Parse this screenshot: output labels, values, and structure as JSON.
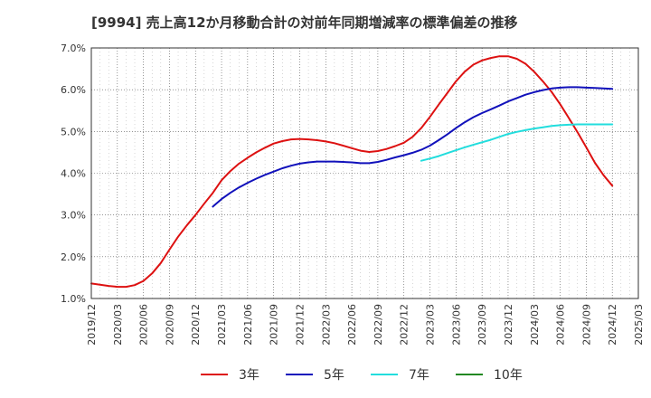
{
  "chart_data": {
    "type": "line",
    "title": "[9994]  売上高12か月移動合計の対前年同期増減率の標準偏差の推移",
    "x_ticks": [
      "2019/12",
      "2020/03",
      "2020/06",
      "2020/09",
      "2020/12",
      "2021/03",
      "2021/06",
      "2021/09",
      "2021/12",
      "2022/03",
      "2022/06",
      "2022/09",
      "2022/12",
      "2023/03",
      "2023/06",
      "2023/09",
      "2023/12",
      "2024/03",
      "2024/06",
      "2024/09",
      "2024/12",
      "2025/03"
    ],
    "y_ticks": [
      "1.0%",
      "2.0%",
      "3.0%",
      "4.0%",
      "5.0%",
      "6.0%",
      "7.0%"
    ],
    "ylim": [
      1.0,
      7.0
    ],
    "y_unit": "%",
    "grid": true,
    "legend_position": "bottom",
    "series": [
      {
        "name": "3年",
        "color": "#dd1111",
        "points": [
          [
            "2019/12",
            1.36
          ],
          [
            "2020/01",
            1.33
          ],
          [
            "2020/02",
            1.3
          ],
          [
            "2020/03",
            1.28
          ],
          [
            "2020/04",
            1.28
          ],
          [
            "2020/05",
            1.32
          ],
          [
            "2020/06",
            1.42
          ],
          [
            "2020/07",
            1.6
          ],
          [
            "2020/08",
            1.85
          ],
          [
            "2020/09",
            2.17
          ],
          [
            "2020/10",
            2.48
          ],
          [
            "2020/11",
            2.75
          ],
          [
            "2020/12",
            3.0
          ],
          [
            "2021/01",
            3.27
          ],
          [
            "2021/02",
            3.53
          ],
          [
            "2021/03",
            3.83
          ],
          [
            "2021/04",
            4.05
          ],
          [
            "2021/05",
            4.23
          ],
          [
            "2021/06",
            4.37
          ],
          [
            "2021/07",
            4.5
          ],
          [
            "2021/08",
            4.61
          ],
          [
            "2021/09",
            4.71
          ],
          [
            "2021/10",
            4.77
          ],
          [
            "2021/11",
            4.81
          ],
          [
            "2021/12",
            4.82
          ],
          [
            "2022/01",
            4.81
          ],
          [
            "2022/02",
            4.79
          ],
          [
            "2022/03",
            4.76
          ],
          [
            "2022/04",
            4.72
          ],
          [
            "2022/05",
            4.66
          ],
          [
            "2022/06",
            4.6
          ],
          [
            "2022/07",
            4.54
          ],
          [
            "2022/08",
            4.51
          ],
          [
            "2022/09",
            4.53
          ],
          [
            "2022/10",
            4.58
          ],
          [
            "2022/11",
            4.65
          ],
          [
            "2022/12",
            4.73
          ],
          [
            "2023/01",
            4.87
          ],
          [
            "2023/02",
            5.08
          ],
          [
            "2023/03",
            5.35
          ],
          [
            "2023/04",
            5.64
          ],
          [
            "2023/05",
            5.92
          ],
          [
            "2023/06",
            6.2
          ],
          [
            "2023/07",
            6.43
          ],
          [
            "2023/08",
            6.6
          ],
          [
            "2023/09",
            6.7
          ],
          [
            "2023/10",
            6.76
          ],
          [
            "2023/11",
            6.8
          ],
          [
            "2023/12",
            6.8
          ],
          [
            "2024/01",
            6.74
          ],
          [
            "2024/02",
            6.62
          ],
          [
            "2024/03",
            6.43
          ],
          [
            "2024/04",
            6.2
          ],
          [
            "2024/05",
            5.95
          ],
          [
            "2024/06",
            5.65
          ],
          [
            "2024/07",
            5.32
          ],
          [
            "2024/08",
            4.98
          ],
          [
            "2024/09",
            4.62
          ],
          [
            "2024/10",
            4.25
          ],
          [
            "2024/11",
            3.95
          ],
          [
            "2024/12",
            3.7
          ]
        ]
      },
      {
        "name": "5年",
        "color": "#1111bb",
        "points": [
          [
            "2021/02",
            3.2
          ],
          [
            "2021/03",
            3.38
          ],
          [
            "2021/04",
            3.53
          ],
          [
            "2021/05",
            3.66
          ],
          [
            "2021/06",
            3.77
          ],
          [
            "2021/07",
            3.87
          ],
          [
            "2021/08",
            3.96
          ],
          [
            "2021/09",
            4.04
          ],
          [
            "2021/10",
            4.12
          ],
          [
            "2021/11",
            4.18
          ],
          [
            "2021/12",
            4.23
          ],
          [
            "2022/01",
            4.26
          ],
          [
            "2022/02",
            4.28
          ],
          [
            "2022/03",
            4.28
          ],
          [
            "2022/04",
            4.28
          ],
          [
            "2022/05",
            4.27
          ],
          [
            "2022/06",
            4.26
          ],
          [
            "2022/07",
            4.24
          ],
          [
            "2022/08",
            4.24
          ],
          [
            "2022/09",
            4.27
          ],
          [
            "2022/10",
            4.32
          ],
          [
            "2022/11",
            4.38
          ],
          [
            "2022/12",
            4.43
          ],
          [
            "2023/01",
            4.49
          ],
          [
            "2023/02",
            4.56
          ],
          [
            "2023/03",
            4.66
          ],
          [
            "2023/04",
            4.79
          ],
          [
            "2023/05",
            4.93
          ],
          [
            "2023/06",
            5.08
          ],
          [
            "2023/07",
            5.22
          ],
          [
            "2023/08",
            5.34
          ],
          [
            "2023/09",
            5.44
          ],
          [
            "2023/10",
            5.53
          ],
          [
            "2023/11",
            5.62
          ],
          [
            "2023/12",
            5.72
          ],
          [
            "2024/01",
            5.8
          ],
          [
            "2024/02",
            5.88
          ],
          [
            "2024/03",
            5.94
          ],
          [
            "2024/04",
            5.99
          ],
          [
            "2024/05",
            6.03
          ],
          [
            "2024/06",
            6.05
          ],
          [
            "2024/07",
            6.06
          ],
          [
            "2024/08",
            6.06
          ],
          [
            "2024/09",
            6.05
          ],
          [
            "2024/10",
            6.04
          ],
          [
            "2024/11",
            6.03
          ],
          [
            "2024/12",
            6.02
          ]
        ]
      },
      {
        "name": "7年",
        "color": "#22dddd",
        "points": [
          [
            "2023/02",
            4.3
          ],
          [
            "2023/03",
            4.35
          ],
          [
            "2023/04",
            4.41
          ],
          [
            "2023/05",
            4.48
          ],
          [
            "2023/06",
            4.55
          ],
          [
            "2023/07",
            4.62
          ],
          [
            "2023/08",
            4.68
          ],
          [
            "2023/09",
            4.74
          ],
          [
            "2023/10",
            4.8
          ],
          [
            "2023/11",
            4.87
          ],
          [
            "2023/12",
            4.94
          ],
          [
            "2024/01",
            4.99
          ],
          [
            "2024/02",
            5.03
          ],
          [
            "2024/03",
            5.07
          ],
          [
            "2024/04",
            5.1
          ],
          [
            "2024/05",
            5.13
          ],
          [
            "2024/06",
            5.15
          ],
          [
            "2024/07",
            5.16
          ],
          [
            "2024/08",
            5.17
          ],
          [
            "2024/09",
            5.17
          ],
          [
            "2024/10",
            5.17
          ],
          [
            "2024/11",
            5.17
          ],
          [
            "2024/12",
            5.17
          ]
        ]
      },
      {
        "name": "10年",
        "color": "#228822",
        "points": []
      }
    ]
  }
}
